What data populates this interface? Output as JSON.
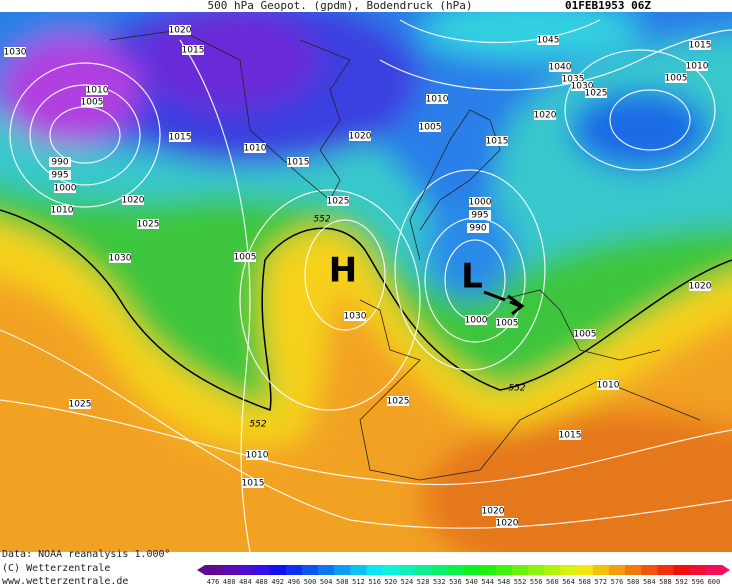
{
  "header": {
    "title": "500 hPa Geopot. (gpdm), Bodendruck (hPa)",
    "date": "01FEB1953 06Z"
  },
  "map": {
    "isobar_labels": [
      1020,
      1015,
      1030,
      1010,
      1005,
      1015,
      990,
      995,
      1000,
      1010,
      1020,
      1025,
      1030,
      1010,
      1015,
      1020,
      1025,
      1010,
      1005,
      1015,
      1045,
      1040,
      1035,
      1030,
      1025,
      1020,
      1015,
      1010,
      1005,
      1005,
      1030,
      1000,
      995,
      990,
      1000,
      1005,
      1005,
      1020,
      1010,
      1025,
      1025,
      1010,
      1015,
      1015,
      1020,
      1020
    ],
    "contour_labels": [
      552,
      552,
      552
    ],
    "high": "H",
    "low": "L"
  },
  "footer": {
    "source": "Data: NOAA reanalysis 1.000°",
    "copyright": "(C) Wetterzentrale",
    "url": "www.wetterzentrale.de"
  },
  "colorbar": {
    "ticks": [
      476,
      480,
      484,
      488,
      492,
      496,
      500,
      504,
      508,
      512,
      516,
      520,
      524,
      528,
      532,
      536,
      540,
      544,
      548,
      552,
      556,
      560,
      564,
      568,
      572,
      576,
      580,
      584,
      588,
      592,
      596,
      600
    ]
  }
}
